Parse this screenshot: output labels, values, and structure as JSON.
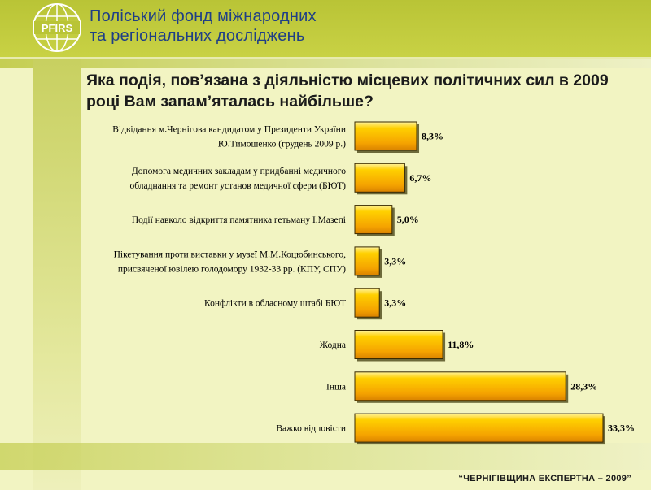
{
  "header": {
    "org_line1": "Поліський фонд міжнародних",
    "org_line2": "та регіональних досліджень",
    "logo_text": "PFIRS"
  },
  "colors": {
    "bar_fill": "#f5a800",
    "header_bg": "#b9c436",
    "org_text": "#1f3f86"
  },
  "chart_data": {
    "type": "bar",
    "orientation": "horizontal",
    "title": "Яка подія, пов’язана з діяльністю місцевих політичних сил в 2009 році Вам запам’яталась найбільше?",
    "categories": [
      [
        "Відвідання м.Чернігова кандидатом у Президенти України",
        "Ю.Тимошенко (грудень 2009 р.)"
      ],
      [
        "Допомога медичних закладам у придбанні медичного",
        "обладнання та ремонт установ медичної сфери (БЮТ)"
      ],
      [
        "Події навколо відкриття памятника гетьману І.Мазепі"
      ],
      [
        "Пікетування проти виставки у музеї М.М.Коцюбинського,",
        "присвяченої ювілею голодомору 1932-33 рр. (КПУ, СПУ)"
      ],
      [
        "Конфлікти в обласному штабі БЮТ"
      ],
      [
        "Жодна"
      ],
      [
        "Інша"
      ],
      [
        "Важко відповісти"
      ]
    ],
    "values": [
      8.3,
      6.7,
      5.0,
      3.3,
      3.3,
      11.8,
      28.3,
      33.3
    ],
    "value_labels": [
      "8,3%",
      "6,7%",
      "5,0%",
      "3,3%",
      "3,3%",
      "11,8%",
      "28,3%",
      "33,3%"
    ],
    "xlim": [
      0,
      33.3
    ],
    "grid": false,
    "legend": "none"
  },
  "footer": {
    "text": "“ЧЕРНІГІВЩИНА ЕКСПЕРТНА – 2009”"
  }
}
